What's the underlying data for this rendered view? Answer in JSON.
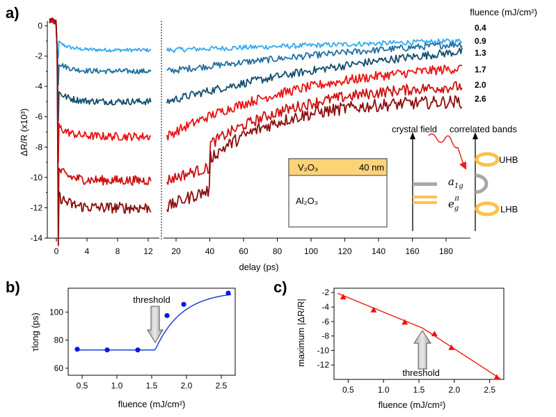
{
  "panels": {
    "a": "a)",
    "b": "b)",
    "c": "c)"
  },
  "chart_data": [
    {
      "id": "a",
      "type": "line",
      "title": "",
      "xlabel": "delay (ps)",
      "ylabel": "ΔR/R (x10³)",
      "xticks_left": [
        "0",
        "4",
        "8",
        "12"
      ],
      "xticks_right": [
        "20",
        "40",
        "60",
        "80",
        "100",
        "120",
        "140",
        "160",
        "180"
      ],
      "xlim_left": [
        -1,
        13
      ],
      "xlim_right": [
        14,
        195
      ],
      "yticks": [
        "0",
        "-2",
        "-4",
        "-6",
        "-8",
        "-10",
        "-12",
        "-14"
      ],
      "ylim": [
        -14,
        0.5
      ],
      "legend_title": "fluence (mJ/cm²)",
      "series": [
        {
          "name": "0.4",
          "color": "#33aaee",
          "plateau": -1.6,
          "end": -1.0,
          "rec": 0.0008
        },
        {
          "name": "0.9",
          "color": "#1f6f9e",
          "plateau": -3.0,
          "end": -1.2,
          "rec": 0.004
        },
        {
          "name": "1.3",
          "color": "#124d6e",
          "plateau": -5.0,
          "end": -1.7,
          "rec": 0.006
        },
        {
          "name": "1.7",
          "color": "#ee1111",
          "plateau": -7.3,
          "end": -2.8,
          "rec": 0.012
        },
        {
          "name": "2.0",
          "color": "#cc1010",
          "plateau": -10.2,
          "end": -4.0,
          "rec": 0.018
        },
        {
          "name": "2.6",
          "color": "#8b0d0d",
          "plateau": -12.0,
          "end": -5.0,
          "rec": 0.024
        }
      ],
      "annotations": {
        "crystal_field": "crystal field",
        "correlated_bands": "correlated bands",
        "uhb": "UHB",
        "lhb": "LHB",
        "a1g_symbol": "a",
        "a1g_sub": "1g",
        "eg_symbol": "e",
        "eg_sub": "g",
        "eg_sup": "π",
        "film": "V₂O₃",
        "film_thickness": "40 nm",
        "substrate": "Al₂O₃"
      }
    },
    {
      "id": "b",
      "type": "scatter",
      "xlabel": "fluence (mJ/cm²)",
      "ylabel": "τlong (ps)",
      "xticks": [
        "0.5",
        "1.0",
        "1.5",
        "2.0",
        "2.5"
      ],
      "yticks": [
        "60",
        "80",
        "100"
      ],
      "xlim": [
        0.3,
        2.7
      ],
      "ylim": [
        55,
        117
      ],
      "x": [
        0.43,
        0.86,
        1.3,
        1.72,
        1.96,
        2.6
      ],
      "y": [
        73.5,
        73.0,
        73.0,
        97.5,
        105.5,
        113.5
      ],
      "marker_color": "#0a18e0",
      "fit_color": "#1a3ed8",
      "fit_threshold": 1.55,
      "fit_base": 73.0,
      "fit_top": 115.0,
      "fit_rate": 2.6,
      "threshold_label": "threshold",
      "threshold_x": 1.55
    },
    {
      "id": "c",
      "type": "scatter",
      "xlabel": "fluence (mJ/cm²)",
      "ylabel": "maximum |ΔR/R|",
      "xticks": [
        "0.5",
        "1.0",
        "1.5",
        "2.0",
        "2.5"
      ],
      "yticks": [
        "-2",
        "-4",
        "-6",
        "-8",
        "-10",
        "-12"
      ],
      "xlim": [
        0.3,
        2.7
      ],
      "ylim": [
        -14,
        -1.4
      ],
      "x": [
        0.43,
        0.86,
        1.3,
        1.72,
        1.96,
        2.6
      ],
      "y": [
        -2.6,
        -4.4,
        -6.1,
        -7.7,
        -9.6,
        -13.7
      ],
      "marker_color": "#ee1111",
      "fit": {
        "x": [
          0.35,
          1.55,
          2.65
        ],
        "y": [
          -2.1,
          -6.9,
          -13.9
        ]
      },
      "fit_color": "#ee2a1a",
      "threshold_label": "threshold",
      "threshold_x": 1.55
    }
  ]
}
